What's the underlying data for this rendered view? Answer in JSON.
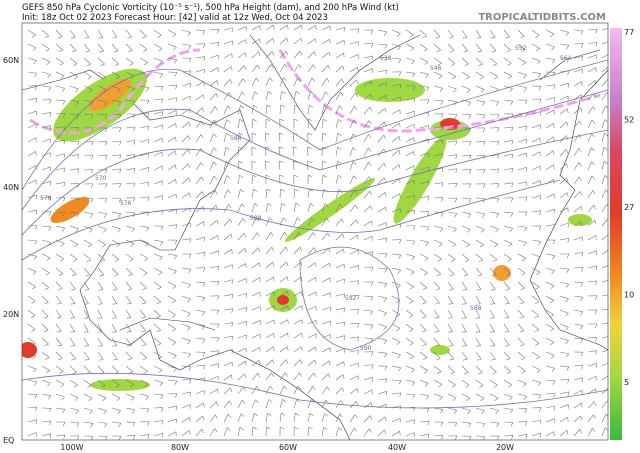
{
  "header": {
    "title": "GEFS 850 hPa Cyclonic Vorticity (10⁻⁵ s⁻¹), 500 hPa Height (dam), and 200 hPa Wind (kt)",
    "subtitle": "Init: 18z Oct 02 2023   Forecast Hour: [42]   valid at 12z Wed, Oct 04 2023",
    "brand": "TROPICALTIDBITS.COM"
  },
  "map": {
    "lat_labels": [
      "60N",
      "40N",
      "20N",
      "EQ"
    ],
    "lon_labels": [
      "100W",
      "80W",
      "60W",
      "40W",
      "20W"
    ],
    "contour_labels": [
      "570",
      "576",
      "584",
      "588",
      "592",
      "590",
      "588",
      "576",
      "564",
      "552",
      "546",
      "538"
    ]
  },
  "colorbar": {
    "ticks": [
      77,
      52,
      27,
      10,
      5
    ]
  }
}
